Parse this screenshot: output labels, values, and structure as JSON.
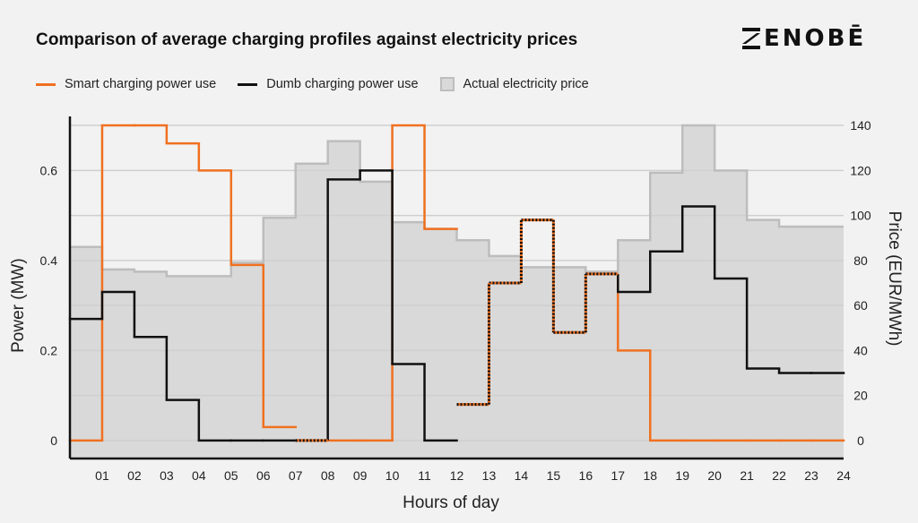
{
  "logo": {
    "text": "ENOBĒ"
  },
  "chart_data": {
    "type": "line",
    "title": "Comparison of average charging profiles against electricity prices",
    "xlabel": "Hours of day",
    "ylabel": "Power (MW)",
    "y2label": "Price (EUR/MWh)",
    "xlim": [
      0,
      24
    ],
    "ylim": [
      -0.04,
      0.72
    ],
    "y2lim": [
      -8,
      144
    ],
    "xticks": [
      "01",
      "02",
      "03",
      "04",
      "05",
      "06",
      "07",
      "08",
      "09",
      "10",
      "11",
      "12",
      "13",
      "14",
      "15",
      "16",
      "17",
      "18",
      "19",
      "20",
      "21",
      "22",
      "23",
      "24"
    ],
    "yticks": [
      "0",
      "0.2",
      "0.4",
      "0.6"
    ],
    "yticks_values": [
      0,
      0.2,
      0.4,
      0.6
    ],
    "y2ticks": [
      "0",
      "20",
      "40",
      "60",
      "80",
      "100",
      "120",
      "140"
    ],
    "y2ticks_values": [
      0,
      20,
      40,
      60,
      80,
      100,
      120,
      140
    ],
    "grid": "horizontal",
    "legend_position": "top",
    "series": [
      {
        "name": "Smart charging power use",
        "kind": "step",
        "axis": "left",
        "color": "#f07020",
        "values": [
          0,
          0.7,
          0.7,
          0.66,
          0.6,
          0.39,
          0.03,
          0,
          0,
          0,
          0.7,
          0.47,
          0.08,
          0.35,
          0.49,
          0.24,
          0.37,
          0.2,
          0,
          0,
          0,
          0,
          0,
          0
        ]
      },
      {
        "name": "Dumb charging power use",
        "kind": "step",
        "axis": "left",
        "color": "#111111",
        "values": [
          0.27,
          0.33,
          0.23,
          0.09,
          0,
          0,
          0,
          0,
          0.58,
          0.6,
          0.17,
          0,
          0.08,
          0.35,
          0.49,
          0.24,
          0.37,
          0.33,
          0.42,
          0.52,
          0.36,
          0.16,
          0.15,
          0.15
        ]
      },
      {
        "name": "Actual electricity price",
        "kind": "step-area",
        "axis": "right",
        "color": "#d9d9d9",
        "values": [
          86,
          76,
          75,
          73,
          73,
          79,
          99,
          123,
          133,
          115,
          97,
          94,
          89,
          82,
          77,
          77,
          75,
          89,
          119,
          140,
          120,
          98,
          95,
          95
        ]
      }
    ]
  }
}
